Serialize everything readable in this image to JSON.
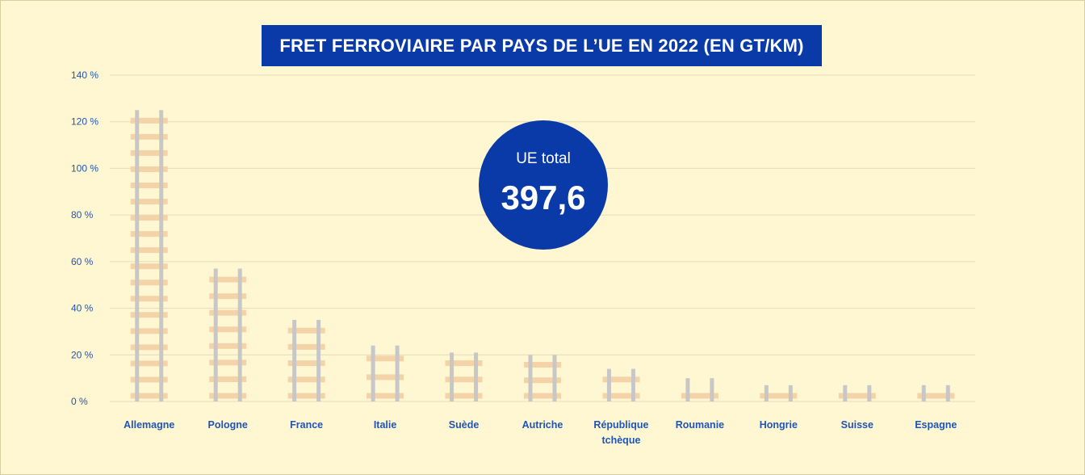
{
  "chart_data": {
    "type": "bar",
    "title": "FRET FERROVIAIRE PAR PAYS DE L’UE EN 2022 (EN GT/KM)",
    "categories": [
      "Allemagne",
      "Pologne",
      "France",
      "Italie",
      "Suède",
      "Autriche",
      "République tchèque",
      "Roumanie",
      "Hongrie",
      "Suisse",
      "Espagne"
    ],
    "category_lines": [
      [
        "Allemagne"
      ],
      [
        "Pologne"
      ],
      [
        "France"
      ],
      [
        "Italie"
      ],
      [
        "Suède"
      ],
      [
        "Autriche"
      ],
      [
        "République",
        "tchèque"
      ],
      [
        "Roumanie"
      ],
      [
        "Hongrie"
      ],
      [
        "Suisse"
      ],
      [
        "Espagne"
      ]
    ],
    "values": [
      125,
      57,
      35,
      24,
      21,
      20,
      14,
      10,
      7,
      7,
      7
    ],
    "ylim": [
      0,
      140
    ],
    "y_ticks": [
      {
        "value": 0,
        "label": "0 %"
      },
      {
        "value": 20,
        "label": "20 %"
      },
      {
        "value": 40,
        "label": "40 %"
      },
      {
        "value": 60,
        "label": "60 %"
      },
      {
        "value": 80,
        "label": "80 %"
      },
      {
        "value": 100,
        "label": "100 %"
      },
      {
        "value": 120,
        "label": "120 %"
      },
      {
        "value": 140,
        "label": "140 %"
      }
    ],
    "grid": true,
    "bar_style": "rail ladder",
    "colors": {
      "rail": "#c8c7c8",
      "sleeper": "#f4d3a8",
      "grid": "#e4dcb8",
      "label": "#1f55b8",
      "title_bg": "#0a3aa8",
      "badge": "#0a3aa8"
    },
    "annotation": {
      "label": "UE total",
      "value": "397,6"
    }
  }
}
